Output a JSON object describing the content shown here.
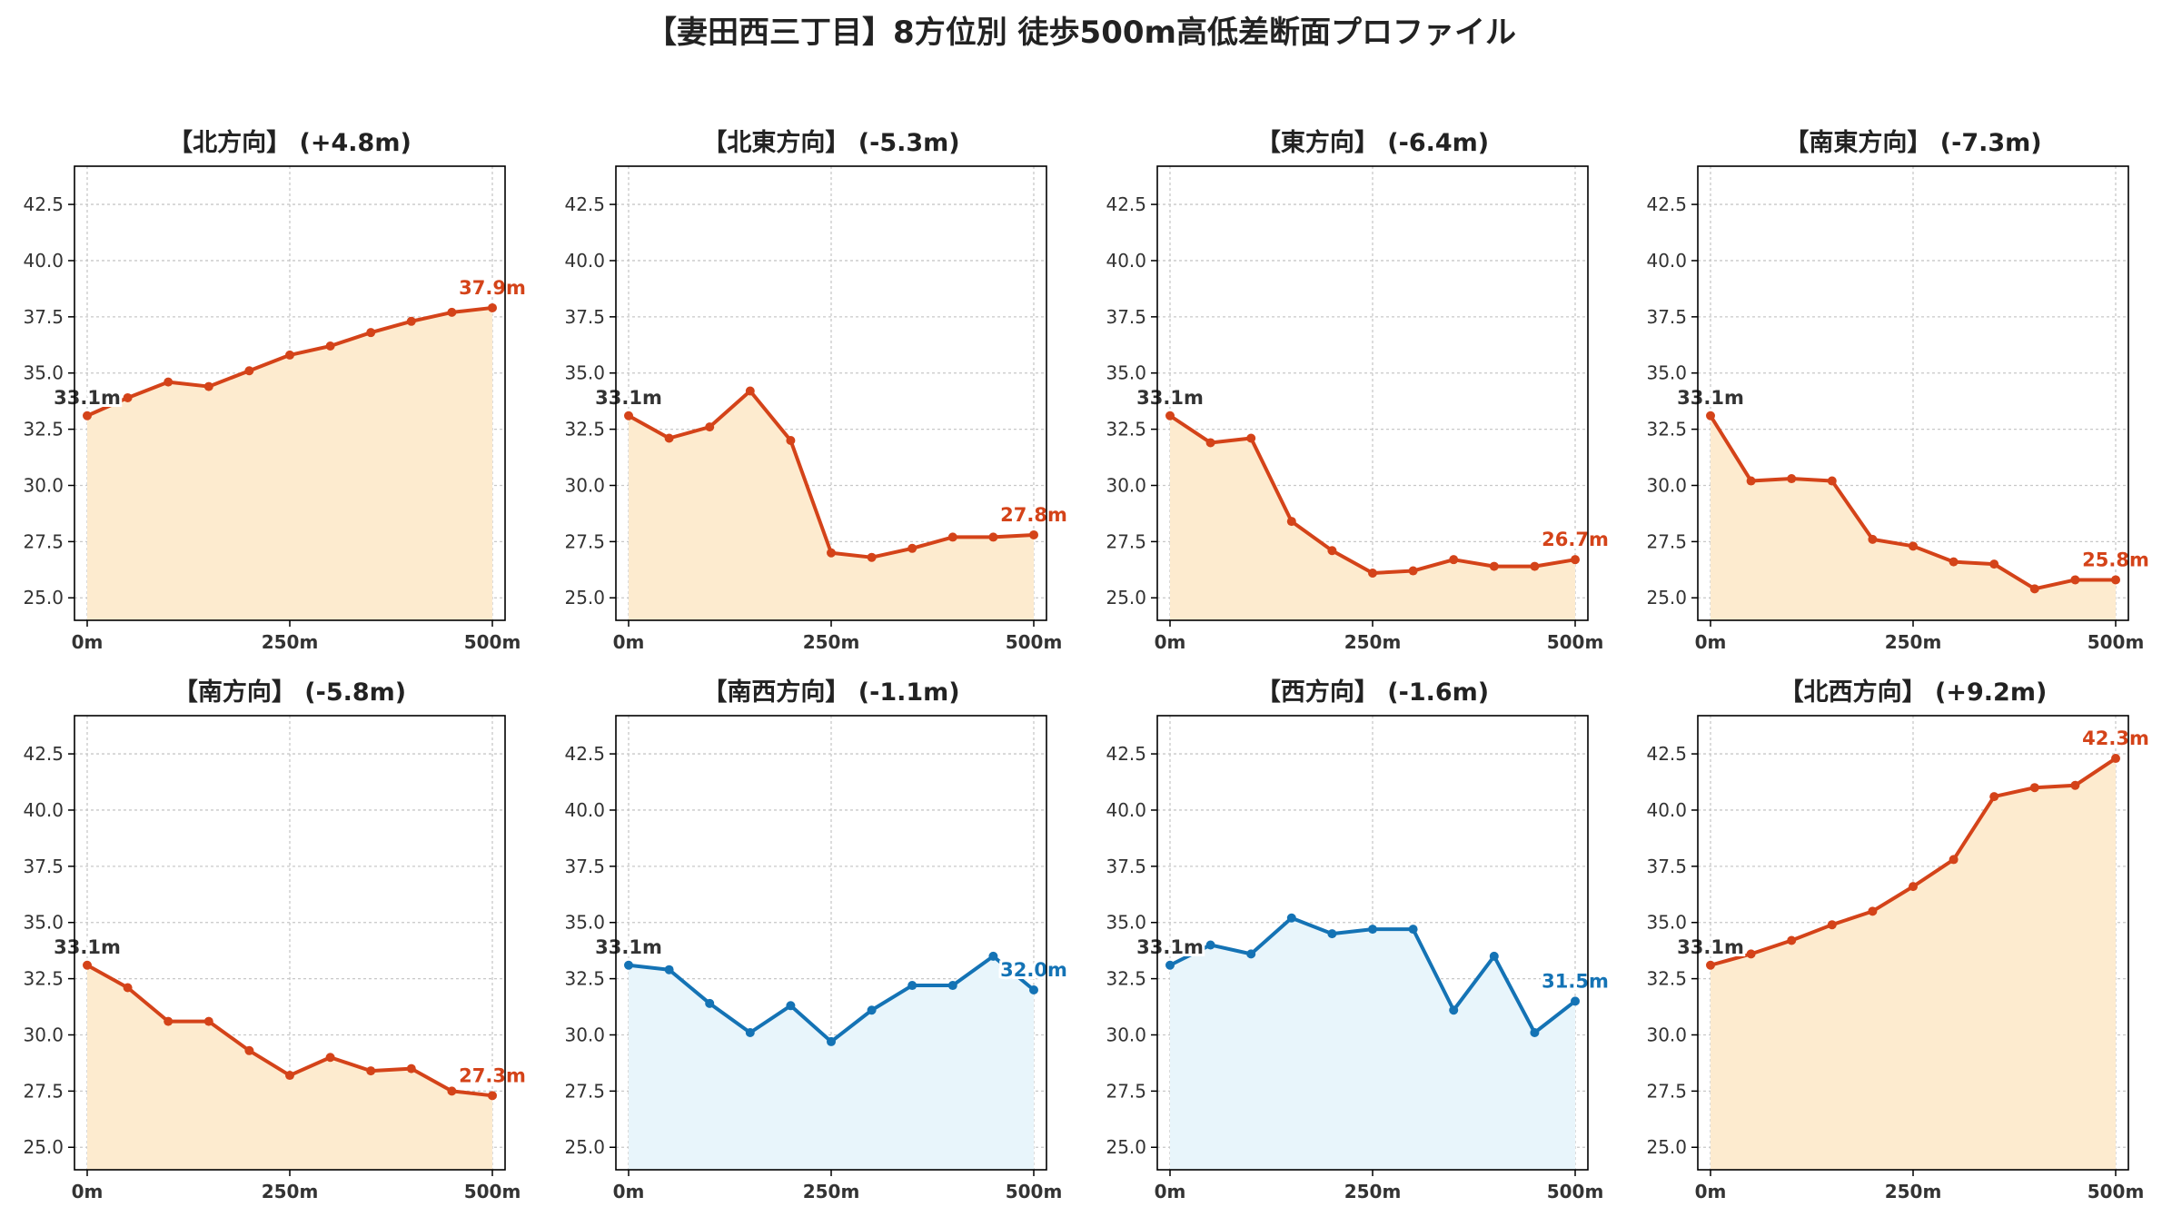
{
  "title": "【妻田西三丁目】8方位別 徒歩500m高低差断面プロファイル",
  "colors": {
    "up_line": "#d44319",
    "up_fill": "#fdebcf",
    "down_line": "#1473b5",
    "down_fill": "#e8f5fb",
    "start_label": "#333333"
  },
  "chart_data": [
    {
      "type": "area",
      "title": "【北方向】 (+4.8m)",
      "x": [
        0,
        50,
        100,
        150,
        200,
        250,
        300,
        350,
        400,
        450,
        500
      ],
      "values": [
        33.1,
        33.9,
        34.6,
        34.4,
        35.1,
        35.8,
        36.2,
        36.8,
        37.3,
        37.7,
        37.9
      ],
      "start_label": "33.1m",
      "end_label": "37.9m",
      "theme": "up",
      "xticks": [
        "0m",
        "250m",
        "500m"
      ],
      "xlim": [
        0,
        500
      ],
      "ylim": [
        24,
        44.2
      ],
      "yticks": [
        "25.0",
        "27.5",
        "30.0",
        "32.5",
        "35.0",
        "37.5",
        "40.0",
        "42.5"
      ],
      "grid": true
    },
    {
      "type": "area",
      "title": "【北東方向】 (-5.3m)",
      "x": [
        0,
        50,
        100,
        150,
        200,
        250,
        300,
        350,
        400,
        450,
        500
      ],
      "values": [
        33.1,
        32.1,
        32.6,
        34.2,
        32.0,
        27.0,
        26.8,
        27.2,
        27.7,
        27.7,
        27.8
      ],
      "start_label": "33.1m",
      "end_label": "27.8m",
      "theme": "up",
      "xticks": [
        "0m",
        "250m",
        "500m"
      ],
      "xlim": [
        0,
        500
      ],
      "ylim": [
        24,
        44.2
      ],
      "yticks": [
        "25.0",
        "27.5",
        "30.0",
        "32.5",
        "35.0",
        "37.5",
        "40.0",
        "42.5"
      ],
      "grid": true
    },
    {
      "type": "area",
      "title": "【東方向】 (-6.4m)",
      "x": [
        0,
        50,
        100,
        150,
        200,
        250,
        300,
        350,
        400,
        450,
        500
      ],
      "values": [
        33.1,
        31.9,
        32.1,
        28.4,
        27.1,
        26.1,
        26.2,
        26.7,
        26.4,
        26.4,
        26.7
      ],
      "start_label": "33.1m",
      "end_label": "26.7m",
      "theme": "up",
      "xticks": [
        "0m",
        "250m",
        "500m"
      ],
      "xlim": [
        0,
        500
      ],
      "ylim": [
        24,
        44.2
      ],
      "yticks": [
        "25.0",
        "27.5",
        "30.0",
        "32.5",
        "35.0",
        "37.5",
        "40.0",
        "42.5"
      ],
      "grid": true
    },
    {
      "type": "area",
      "title": "【南東方向】 (-7.3m)",
      "x": [
        0,
        50,
        100,
        150,
        200,
        250,
        300,
        350,
        400,
        450,
        500
      ],
      "values": [
        33.1,
        30.2,
        30.3,
        30.2,
        27.6,
        27.3,
        26.6,
        26.5,
        25.4,
        25.8,
        25.8
      ],
      "start_label": "33.1m",
      "end_label": "25.8m",
      "theme": "up",
      "xticks": [
        "0m",
        "250m",
        "500m"
      ],
      "xlim": [
        0,
        500
      ],
      "ylim": [
        24,
        44.2
      ],
      "yticks": [
        "25.0",
        "27.5",
        "30.0",
        "32.5",
        "35.0",
        "37.5",
        "40.0",
        "42.5"
      ],
      "grid": true
    },
    {
      "type": "area",
      "title": "【南方向】 (-5.8m)",
      "x": [
        0,
        50,
        100,
        150,
        200,
        250,
        300,
        350,
        400,
        450,
        500
      ],
      "values": [
        33.1,
        32.1,
        30.6,
        30.6,
        29.3,
        28.2,
        29.0,
        28.4,
        28.5,
        27.5,
        27.3
      ],
      "start_label": "33.1m",
      "end_label": "27.3m",
      "theme": "up",
      "xticks": [
        "0m",
        "250m",
        "500m"
      ],
      "xlim": [
        0,
        500
      ],
      "ylim": [
        24,
        44.2
      ],
      "yticks": [
        "25.0",
        "27.5",
        "30.0",
        "32.5",
        "35.0",
        "37.5",
        "40.0",
        "42.5"
      ],
      "grid": true
    },
    {
      "type": "area",
      "title": "【南西方向】 (-1.1m)",
      "x": [
        0,
        50,
        100,
        150,
        200,
        250,
        300,
        350,
        400,
        450,
        500
      ],
      "values": [
        33.1,
        32.9,
        31.4,
        30.1,
        31.3,
        29.7,
        31.1,
        32.2,
        32.2,
        33.5,
        32.0
      ],
      "start_label": "33.1m",
      "end_label": "32.0m",
      "theme": "down",
      "xticks": [
        "0m",
        "250m",
        "500m"
      ],
      "xlim": [
        0,
        500
      ],
      "ylim": [
        24,
        44.2
      ],
      "yticks": [
        "25.0",
        "27.5",
        "30.0",
        "32.5",
        "35.0",
        "37.5",
        "40.0",
        "42.5"
      ],
      "grid": true
    },
    {
      "type": "area",
      "title": "【西方向】 (-1.6m)",
      "x": [
        0,
        50,
        100,
        150,
        200,
        250,
        300,
        350,
        400,
        450,
        500
      ],
      "values": [
        33.1,
        34.0,
        33.6,
        35.2,
        34.5,
        34.7,
        34.7,
        31.1,
        33.5,
        30.1,
        31.5
      ],
      "start_label": "33.1m",
      "end_label": "31.5m",
      "theme": "down",
      "xticks": [
        "0m",
        "250m",
        "500m"
      ],
      "xlim": [
        0,
        500
      ],
      "ylim": [
        24,
        44.2
      ],
      "yticks": [
        "25.0",
        "27.5",
        "30.0",
        "32.5",
        "35.0",
        "37.5",
        "40.0",
        "42.5"
      ],
      "grid": true
    },
    {
      "type": "area",
      "title": "【北西方向】 (+9.2m)",
      "x": [
        0,
        50,
        100,
        150,
        200,
        250,
        300,
        350,
        400,
        450,
        500
      ],
      "values": [
        33.1,
        33.6,
        34.2,
        34.9,
        35.5,
        36.6,
        37.8,
        40.6,
        41.0,
        41.1,
        42.3
      ],
      "start_label": "33.1m",
      "end_label": "42.3m",
      "theme": "up",
      "xticks": [
        "0m",
        "250m",
        "500m"
      ],
      "xlim": [
        0,
        500
      ],
      "ylim": [
        24,
        44.2
      ],
      "yticks": [
        "25.0",
        "27.5",
        "30.0",
        "32.5",
        "35.0",
        "37.5",
        "40.0",
        "42.5"
      ],
      "grid": true
    }
  ]
}
